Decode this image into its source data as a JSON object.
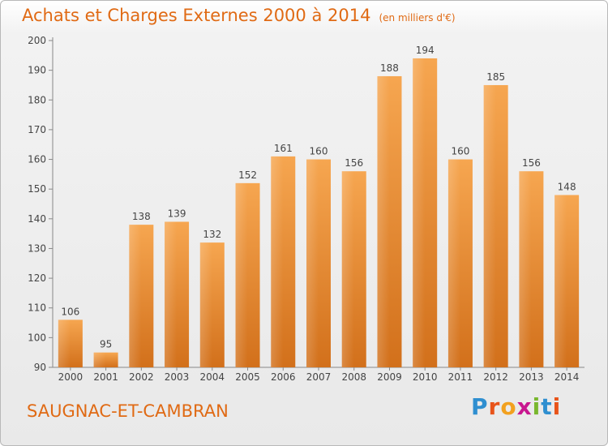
{
  "header": {
    "title": "Achats et Charges Externes 2000 à 2014",
    "unit": "(en milliers d'€)"
  },
  "footer": {
    "city": "SAUGNAC-ET-CAMBRAN",
    "logo": {
      "letters": [
        "P",
        "r",
        "o",
        "x",
        "i",
        "t",
        "i"
      ],
      "colors": [
        "#2f8fd0",
        "#e8541a",
        "#f2a11f",
        "#c8178f",
        "#79b72e",
        "#2f8fd0",
        "#e8541a"
      ]
    }
  },
  "chart_data": {
    "type": "bar",
    "title": "Achats et Charges Externes 2000 à 2014",
    "subtitle": "(en milliers d'€)",
    "categories": [
      "2000",
      "2001",
      "2002",
      "2003",
      "2004",
      "2005",
      "2006",
      "2007",
      "2008",
      "2009",
      "2010",
      "2011",
      "2012",
      "2013",
      "2014"
    ],
    "values": [
      106,
      95,
      138,
      139,
      132,
      152,
      161,
      160,
      156,
      188,
      194,
      160,
      185,
      156,
      148
    ],
    "ylim": [
      90,
      200
    ],
    "yticks": [
      90,
      100,
      110,
      120,
      130,
      140,
      150,
      160,
      170,
      180,
      190,
      200
    ],
    "grid": false,
    "legend": "none",
    "bar_color": "#f08a2c"
  }
}
